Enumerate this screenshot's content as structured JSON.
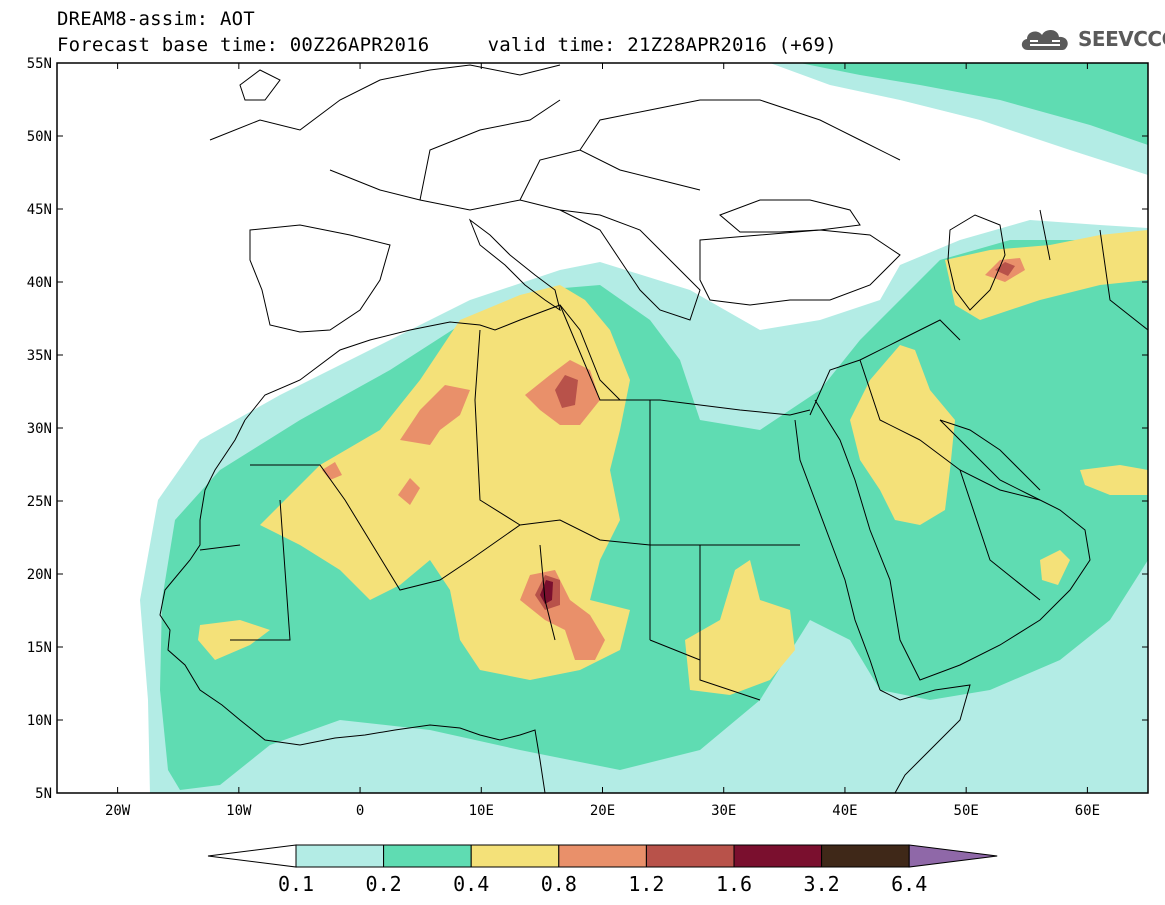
{
  "title": {
    "line1": "DREAM8-assim: AOT",
    "line2": "Forecast base time: 00Z26APR2016     valid time: 21Z28APR2016 (+69)"
  },
  "logo": {
    "text": "SEEVCCC",
    "icon": "cloud-icon"
  },
  "map": {
    "lon_range": [
      -25,
      65
    ],
    "lat_range": [
      5,
      55
    ],
    "lat_ticks": [
      {
        "value": 55,
        "label": "55N"
      },
      {
        "value": 50,
        "label": "50N"
      },
      {
        "value": 45,
        "label": "45N"
      },
      {
        "value": 40,
        "label": "40N"
      },
      {
        "value": 35,
        "label": "35N"
      },
      {
        "value": 30,
        "label": "30N"
      },
      {
        "value": 25,
        "label": "25N"
      },
      {
        "value": 20,
        "label": "20N"
      },
      {
        "value": 15,
        "label": "15N"
      },
      {
        "value": 10,
        "label": "10N"
      },
      {
        "value": 5,
        "label": "5N"
      }
    ],
    "lon_ticks": [
      {
        "value": -20,
        "label": "20W"
      },
      {
        "value": -10,
        "label": "10W"
      },
      {
        "value": 0,
        "label": "0"
      },
      {
        "value": 10,
        "label": "10E"
      },
      {
        "value": 20,
        "label": "20E"
      },
      {
        "value": 30,
        "label": "30E"
      },
      {
        "value": 40,
        "label": "40E"
      },
      {
        "value": 50,
        "label": "50E"
      },
      {
        "value": 60,
        "label": "60E"
      }
    ]
  },
  "colorbar": {
    "under_color": "#ffffff",
    "over_color": "#8f68a8",
    "levels": [
      {
        "color": "#b3ece5",
        "label": "0.1"
      },
      {
        "color": "#5fdcb2",
        "label": "0.2"
      },
      {
        "color": "#f4e179",
        "label": "0.4"
      },
      {
        "color": "#e9906a",
        "label": "0.8"
      },
      {
        "color": "#b8524a",
        "label": "1.2"
      },
      {
        "color": "#7a0f2e",
        "label": "1.6"
      },
      {
        "color": "#3f2818",
        "label": "3.2"
      }
    ],
    "last_label": "6.4"
  },
  "colors": {
    "c1": "#b3ece5",
    "c2": "#5fdcb2",
    "c3": "#f4e179",
    "c4": "#e9906a",
    "c5": "#b8524a",
    "c6": "#7a0f2e"
  }
}
